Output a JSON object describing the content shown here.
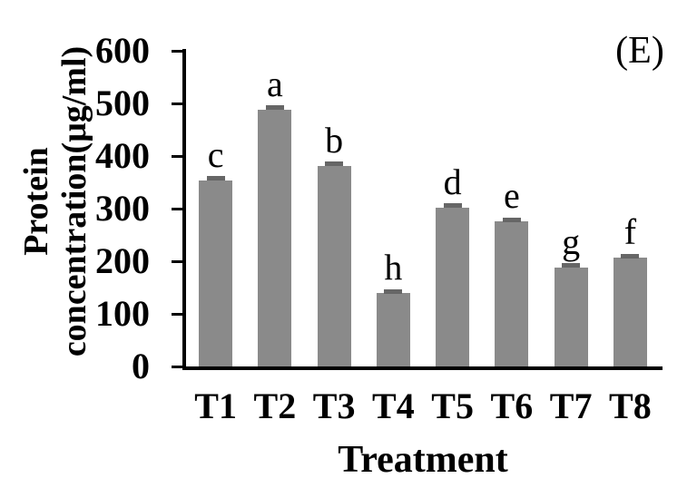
{
  "chart_data": {
    "type": "bar",
    "panel_label": "(E)",
    "xlabel": "Treatment",
    "ylabel": "Protein concentration(μg/ml)",
    "ylabel_lines": [
      "Protein",
      "concentration(μg/ml)"
    ],
    "categories": [
      "T1",
      "T2",
      "T3",
      "T4",
      "T5",
      "T6",
      "T7",
      "T8"
    ],
    "values": [
      353,
      488,
      381,
      139,
      302,
      276,
      188,
      207
    ],
    "errors": [
      5,
      5,
      5,
      4,
      5,
      4,
      5,
      4
    ],
    "significance_letters": [
      "c",
      "a",
      "b",
      "h",
      "d",
      "e",
      "g",
      "f"
    ],
    "ylim": [
      0,
      600
    ],
    "yticks": [
      0,
      100,
      200,
      300,
      400,
      500,
      600
    ],
    "grid": false,
    "legend": false,
    "bar_color": "#8a8a8a",
    "error_cap_color": "#666666",
    "axis_color": "#000000",
    "text_color": "#000000"
  }
}
